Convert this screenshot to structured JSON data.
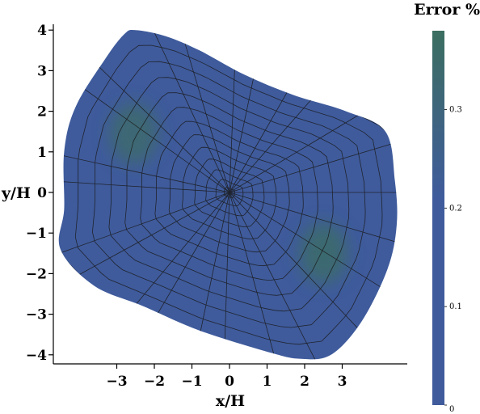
{
  "chart_data": {
    "type": "heatmap",
    "xlabel": "x/H",
    "ylabel": "y/H",
    "xlim": [
      -4.8,
      4.8
    ],
    "ylim": [
      -4.1,
      4.1
    ],
    "x_ticks": [
      "−3",
      "−2",
      "−1",
      "0",
      "1",
      "2",
      "3"
    ],
    "x_tick_values": [
      -3,
      -2,
      -1,
      0,
      1,
      2,
      3
    ],
    "y_ticks": [
      "4",
      "3",
      "2",
      "1",
      "0",
      "−1",
      "−2",
      "−3",
      "−4"
    ],
    "y_tick_values": [
      4,
      3,
      2,
      1,
      0,
      -1,
      -2,
      -3,
      -4
    ],
    "domain_boundary": [
      [
        -2.8,
        3.9
      ],
      [
        -2.5,
        4.0
      ],
      [
        -1.7,
        3.85
      ],
      [
        -0.8,
        3.5
      ],
      [
        0.4,
        2.9
      ],
      [
        1.7,
        2.4
      ],
      [
        3.1,
        2.0
      ],
      [
        4.15,
        1.5
      ],
      [
        4.4,
        0.3
      ],
      [
        4.45,
        -0.8
      ],
      [
        4.2,
        -1.9
      ],
      [
        3.5,
        -3.2
      ],
      [
        2.7,
        -4.0
      ],
      [
        1.9,
        -4.1
      ],
      [
        1.1,
        -3.95
      ],
      [
        -0.8,
        -3.4
      ],
      [
        -2.3,
        -2.8
      ],
      [
        -3.6,
        -2.3
      ],
      [
        -4.5,
        -1.4
      ],
      [
        -4.4,
        -0.4
      ],
      [
        -4.4,
        1.0
      ],
      [
        -4.1,
        2.1
      ],
      [
        -3.3,
        3.3
      ]
    ],
    "hotspots": [
      {
        "x": -2.55,
        "y": 1.45,
        "error": 0.16
      },
      {
        "x": 2.5,
        "y": -1.5,
        "error": 0.17
      }
    ],
    "background_error": 0.05,
    "colorbar": {
      "title": "Error %",
      "range": [
        0,
        0.38
      ],
      "tick_labels": [
        "0",
        "0.1",
        "0.2",
        "0.3"
      ],
      "tick_values": [
        0,
        0.1,
        0.2,
        0.3
      ],
      "color_low": "#3f5b9c",
      "color_high": "#3c6e60"
    },
    "mesh": {
      "center": [
        0,
        0
      ],
      "rings": 13,
      "spokes": 24
    }
  }
}
